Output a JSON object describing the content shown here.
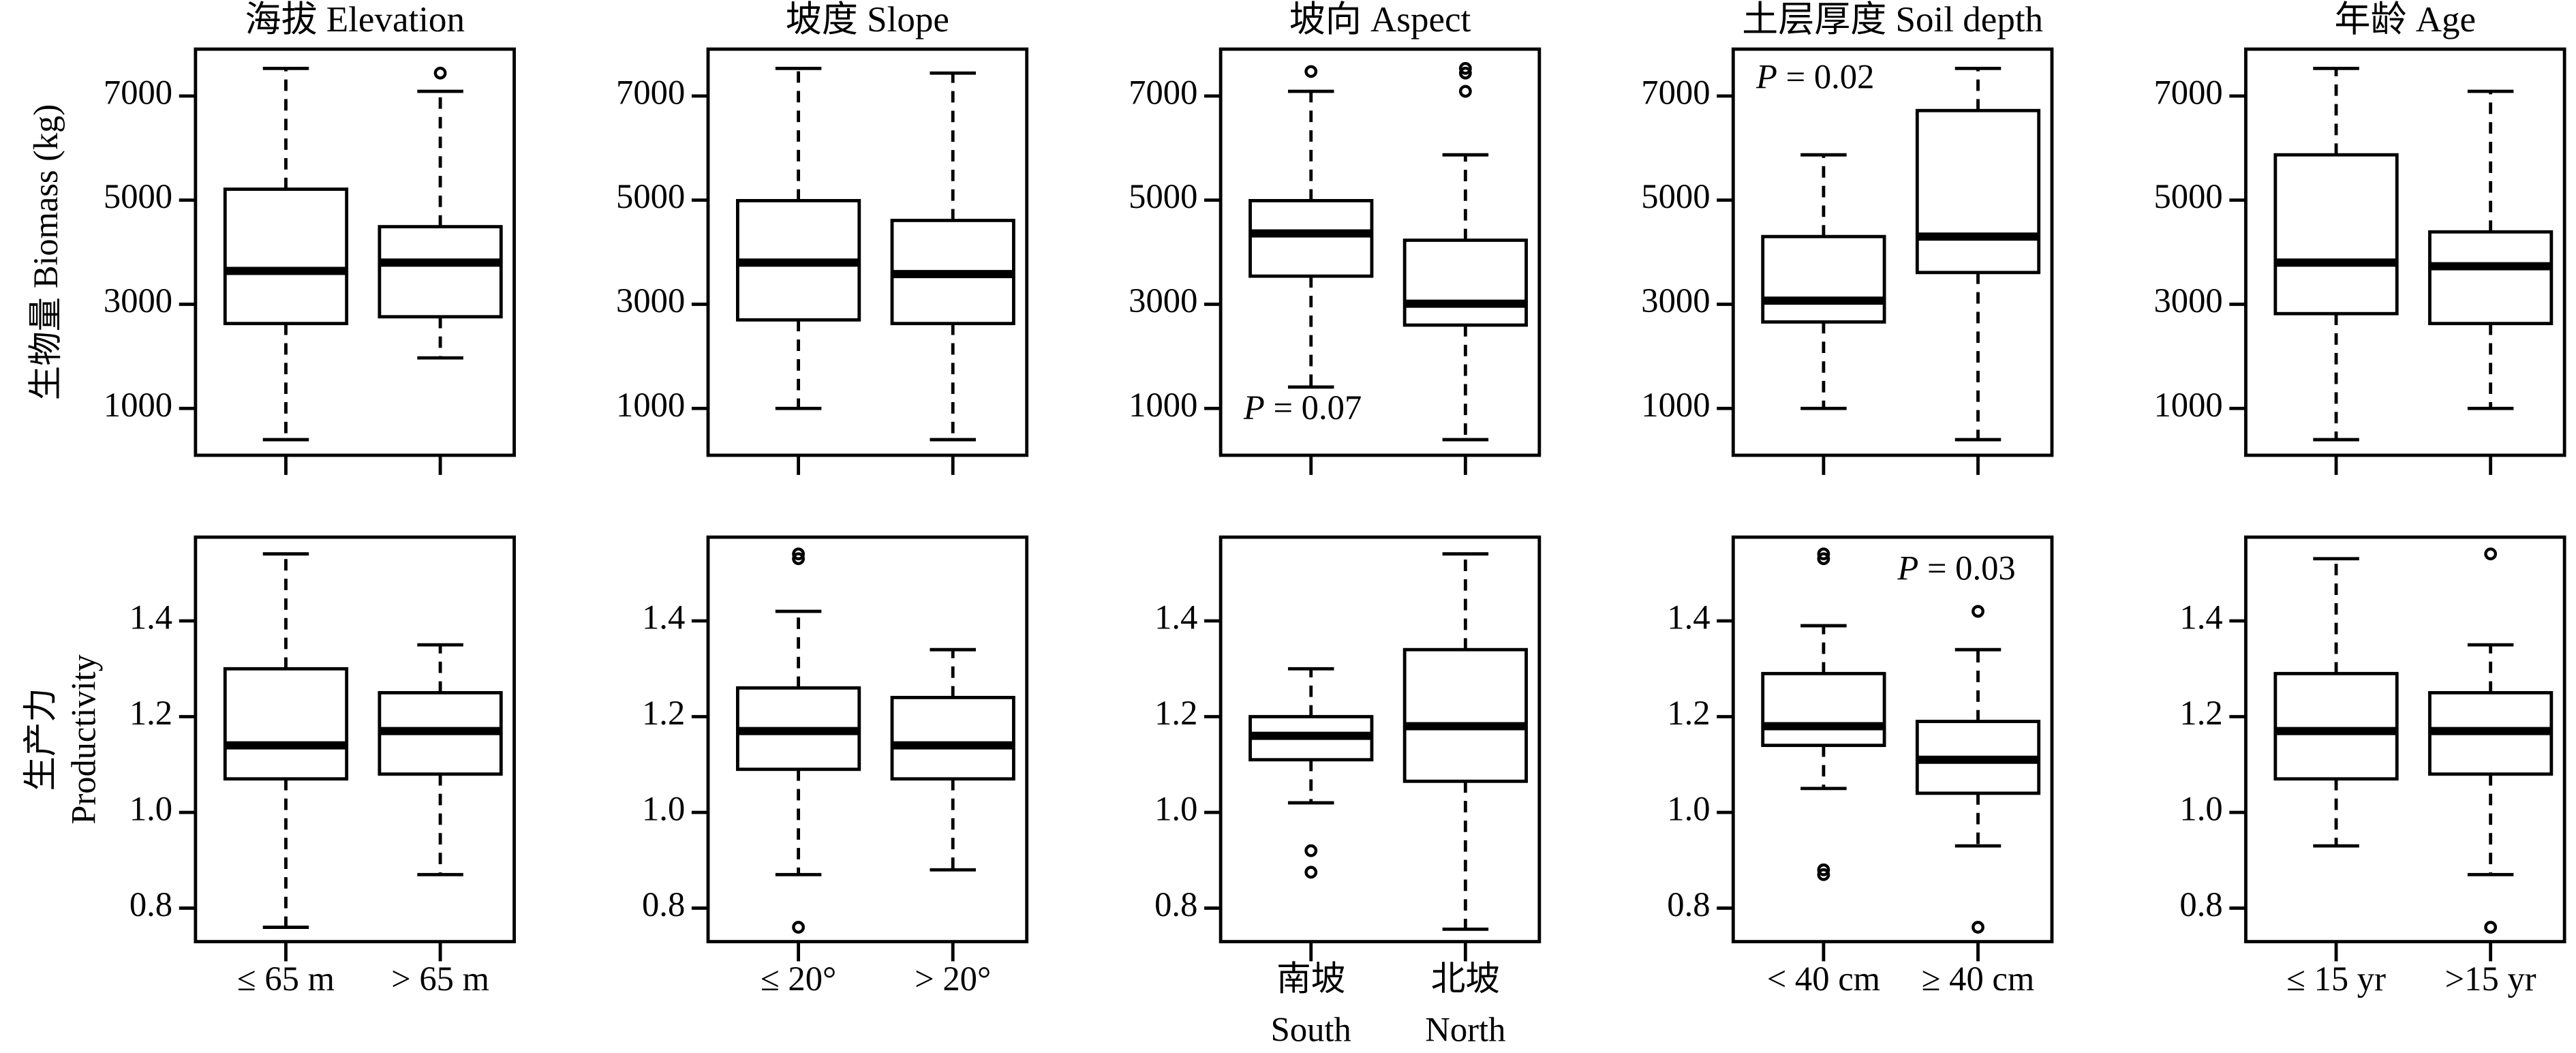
{
  "chart_data": [
    {
      "type": "box",
      "title": "海拔 Elevation",
      "ylabel": "生物量 Biomass (kg)",
      "categories": [
        "≤ 65 m",
        "> 65 m"
      ],
      "values": [
        {
          "low": 400,
          "q1": 2630,
          "median": 3640,
          "q3": 5210,
          "high": 7530,
          "outliers": []
        },
        {
          "low": 1970,
          "q1": 2760,
          "median": 3800,
          "q3": 4490,
          "high": 7090,
          "outliers": [
            7440
          ]
        }
      ],
      "ylim": [
        100,
        7900
      ],
      "yticks": [
        1000,
        3000,
        5000,
        7000
      ]
    },
    {
      "type": "box",
      "title": "坡度 Slope",
      "categories": [
        "≤ 20°",
        "> 20°"
      ],
      "values": [
        {
          "low": 1000,
          "q1": 2700,
          "median": 3800,
          "q3": 4990,
          "high": 7530,
          "outliers": []
        },
        {
          "low": 400,
          "q1": 2630,
          "median": 3580,
          "q3": 4610,
          "high": 7440,
          "outliers": []
        }
      ],
      "ylim": [
        100,
        7900
      ],
      "yticks": [
        1000,
        3000,
        5000,
        7000
      ]
    },
    {
      "type": "box",
      "title": "坡向 Aspect",
      "categories": [
        [
          "南坡",
          "South"
        ],
        [
          "北坡",
          "North"
        ]
      ],
      "annotation": "P = 0.07",
      "values": [
        {
          "low": 1410,
          "q1": 3540,
          "median": 4360,
          "q3": 4990,
          "high": 7090,
          "outliers": [
            7470
          ]
        },
        {
          "low": 400,
          "q1": 2600,
          "median": 3010,
          "q3": 4230,
          "high": 5870,
          "outliers": [
            7530,
            7440,
            7090
          ]
        }
      ],
      "ylim": [
        100,
        7900
      ],
      "yticks": [
        1000,
        3000,
        5000,
        7000
      ]
    },
    {
      "type": "box",
      "title": "土层厚度 Soil depth",
      "categories": [
        "< 40 cm",
        "≥ 40 cm"
      ],
      "annotation": "P = 0.02",
      "values": [
        {
          "low": 1000,
          "q1": 2660,
          "median": 3070,
          "q3": 4300,
          "high": 5870,
          "outliers": []
        },
        {
          "low": 400,
          "q1": 3610,
          "median": 4300,
          "q3": 6720,
          "high": 7530,
          "outliers": []
        }
      ],
      "ylim": [
        100,
        7900
      ],
      "yticks": [
        1000,
        3000,
        5000,
        7000
      ]
    },
    {
      "type": "box",
      "title": "年龄 Age",
      "categories": [
        "≤ 15 yr",
        ">15 yr"
      ],
      "values": [
        {
          "low": 400,
          "q1": 2820,
          "median": 3800,
          "q3": 5870,
          "high": 7530,
          "outliers": []
        },
        {
          "low": 1000,
          "q1": 2630,
          "median": 3730,
          "q3": 4390,
          "high": 7090,
          "outliers": []
        }
      ],
      "ylim": [
        100,
        7900
      ],
      "yticks": [
        1000,
        3000,
        5000,
        7000
      ]
    },
    {
      "type": "box",
      "ylabel": [
        "生产力",
        "Productivity"
      ],
      "categories": [
        "≤ 65 m",
        "> 65 m"
      ],
      "values": [
        {
          "low": 0.76,
          "q1": 1.07,
          "median": 1.14,
          "q3": 1.3,
          "high": 1.54,
          "outliers": []
        },
        {
          "low": 0.87,
          "q1": 1.08,
          "median": 1.17,
          "q3": 1.25,
          "high": 1.35,
          "outliers": []
        }
      ],
      "ylim": [
        0.73,
        1.575
      ],
      "yticks": [
        0.8,
        {
          "value": 1,
          "label": "1.0"
        },
        1.2,
        1.4
      ]
    },
    {
      "type": "box",
      "categories": [
        "≤ 20°",
        "> 20°"
      ],
      "values": [
        {
          "low": 0.87,
          "q1": 1.09,
          "median": 1.17,
          "q3": 1.26,
          "high": 1.42,
          "outliers": [
            1.54,
            1.53,
            0.76
          ]
        },
        {
          "low": 0.88,
          "q1": 1.07,
          "median": 1.14,
          "q3": 1.24,
          "high": 1.34,
          "outliers": []
        }
      ],
      "ylim": [
        0.73,
        1.575
      ],
      "yticks": [
        0.8,
        {
          "value": 1,
          "label": "1.0"
        },
        1.2,
        1.4
      ]
    },
    {
      "type": "box",
      "categories": [
        [
          "南坡",
          "South"
        ],
        [
          "北坡",
          "North"
        ]
      ],
      "values": [
        {
          "low": 1.02,
          "q1": 1.11,
          "median": 1.16,
          "q3": 1.2,
          "high": 1.3,
          "outliers": [
            0.92,
            0.875
          ]
        },
        {
          "low": 0.756,
          "q1": 1.065,
          "median": 1.18,
          "q3": 1.34,
          "high": 1.54,
          "outliers": []
        }
      ],
      "ylim": [
        0.73,
        1.575
      ],
      "yticks": [
        0.8,
        {
          "value": 1,
          "label": "1.0"
        },
        1.2,
        1.4
      ]
    },
    {
      "type": "box",
      "categories": [
        "< 40 cm",
        "≥ 40 cm"
      ],
      "annotation": "P = 0.03",
      "values": [
        {
          "low": 1.05,
          "q1": 1.14,
          "median": 1.18,
          "q3": 1.29,
          "high": 1.39,
          "outliers": [
            1.54,
            1.53,
            0.88,
            0.87
          ]
        },
        {
          "low": 0.93,
          "q1": 1.04,
          "median": 1.11,
          "q3": 1.19,
          "high": 1.34,
          "outliers": [
            1.42,
            0.76
          ]
        }
      ],
      "ylim": [
        0.73,
        1.575
      ],
      "yticks": [
        0.8,
        {
          "value": 1,
          "label": "1.0"
        },
        1.2,
        1.4
      ]
    },
    {
      "type": "box",
      "categories": [
        "≤ 15 yr",
        ">15 yr"
      ],
      "values": [
        {
          "low": 0.93,
          "q1": 1.07,
          "median": 1.17,
          "q3": 1.29,
          "high": 1.53,
          "outliers": []
        },
        {
          "low": 0.87,
          "q1": 1.08,
          "median": 1.17,
          "q3": 1.25,
          "high": 1.35,
          "outliers": [
            1.54,
            0.76
          ]
        }
      ],
      "ylim": [
        0.73,
        1.575
      ],
      "yticks": [
        0.8,
        {
          "value": 1,
          "label": "1.0"
        },
        1.2,
        1.4
      ]
    }
  ]
}
